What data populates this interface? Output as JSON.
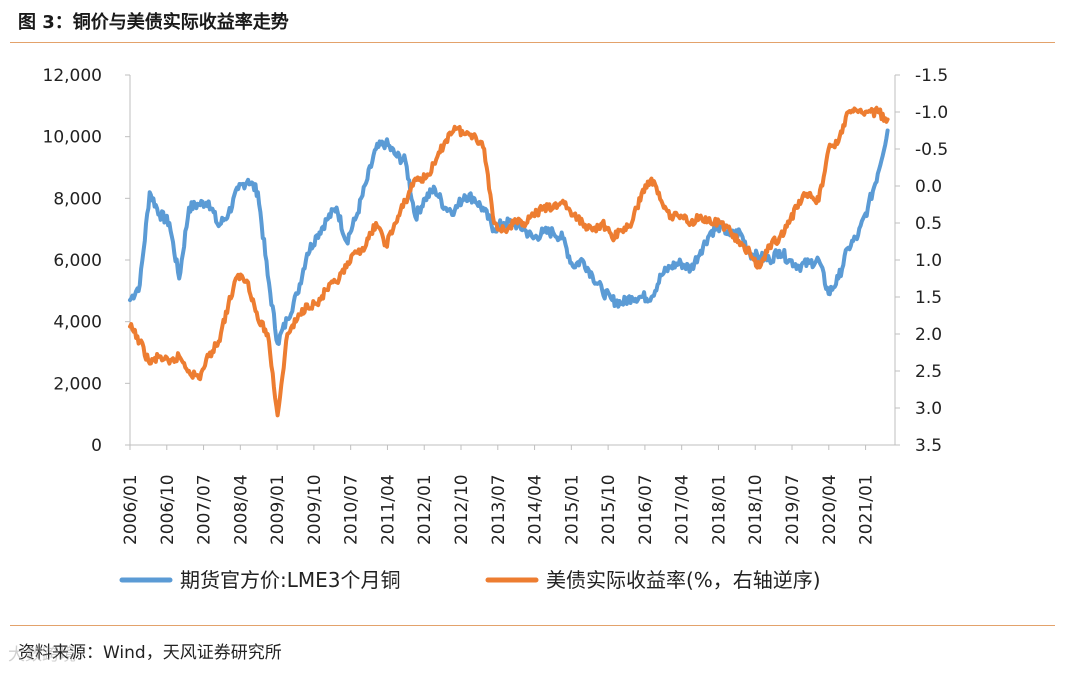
{
  "header": {
    "title": "图 3：铜价与美债实际收益率走势"
  },
  "footer": {
    "source": "资料来源：Wind，天风证券研究所",
    "watermark": "大数跨境"
  },
  "chart_data": {
    "type": "line",
    "title": "图 3：铜价与美债实际收益率走势",
    "xlabel": "",
    "ylabel": "",
    "x_ticks": [
      "2006/01",
      "2006/10",
      "2007/07",
      "2008/04",
      "2009/01",
      "2009/10",
      "2010/07",
      "2011/04",
      "2012/01",
      "2012/10",
      "2013/07",
      "2014/04",
      "2015/01",
      "2015/10",
      "2016/07",
      "2017/04",
      "2018/01",
      "2018/10",
      "2019/07",
      "2020/04",
      "2021/01"
    ],
    "y_left": {
      "ticks": [
        "0",
        "2,000",
        "4,000",
        "6,000",
        "8,000",
        "10,000",
        "12,000"
      ],
      "ylim": [
        0,
        12000
      ]
    },
    "y_right": {
      "ticks": [
        "3.5",
        "3.0",
        "2.5",
        "2.0",
        "1.5",
        "1.0",
        "0.5",
        "0.0",
        "-0.5",
        "-1.0",
        "-1.5"
      ],
      "ylim": [
        3.5,
        -1.5
      ],
      "inverted": true
    },
    "series": [
      {
        "name": "期货官方价:LME3个月铜",
        "axis": "left",
        "color": "#5b9bd5",
        "x": [
          2006.0,
          2006.2,
          2006.4,
          2006.6,
          2006.8,
          2007.0,
          2007.2,
          2007.4,
          2007.6,
          2007.8,
          2008.0,
          2008.2,
          2008.4,
          2008.6,
          2008.8,
          2009.0,
          2009.2,
          2009.4,
          2009.6,
          2009.8,
          2010.0,
          2010.2,
          2010.4,
          2010.6,
          2010.8,
          2011.0,
          2011.2,
          2011.4,
          2011.6,
          2011.8,
          2012.0,
          2012.2,
          2012.4,
          2012.6,
          2012.8,
          2013.0,
          2013.2,
          2013.4,
          2013.6,
          2013.8,
          2014.0,
          2014.2,
          2014.4,
          2014.6,
          2014.8,
          2015.0,
          2015.2,
          2015.4,
          2015.6,
          2015.8,
          2016.0,
          2016.2,
          2016.4,
          2016.6,
          2016.8,
          2017.0,
          2017.2,
          2017.4,
          2017.6,
          2017.8,
          2018.0,
          2018.2,
          2018.4,
          2018.6,
          2018.8,
          2019.0,
          2019.2,
          2019.4,
          2019.6,
          2019.8,
          2020.0,
          2020.2,
          2020.4,
          2020.6,
          2020.8,
          2021.0,
          2021.2,
          2021.4
        ],
        "values": [
          4700,
          5200,
          8200,
          7500,
          7200,
          5400,
          7700,
          7800,
          7900,
          7100,
          7500,
          8300,
          8600,
          8200,
          5500,
          3300,
          4100,
          4900,
          6200,
          6800,
          7300,
          7700,
          6600,
          7400,
          8500,
          9600,
          9800,
          9400,
          9200,
          7400,
          8000,
          8300,
          7700,
          7600,
          8100,
          8000,
          7600,
          7000,
          7200,
          7200,
          7000,
          6700,
          6900,
          6900,
          6700,
          5800,
          6000,
          5500,
          5000,
          4700,
          4600,
          4800,
          4800,
          4800,
          5500,
          5800,
          5900,
          5700,
          6300,
          6900,
          7100,
          6800,
          6900,
          6200,
          6100,
          6000,
          6300,
          6000,
          5800,
          5900,
          6000,
          4900,
          5400,
          6400,
          6800,
          7700,
          8800,
          10200
        ]
      },
      {
        "name": "美债实际收益率(%，右轴逆序)",
        "axis": "right",
        "color": "#ed7d31",
        "x": [
          2006.0,
          2006.2,
          2006.4,
          2006.6,
          2006.8,
          2007.0,
          2007.2,
          2007.4,
          2007.6,
          2007.8,
          2008.0,
          2008.2,
          2008.4,
          2008.6,
          2008.8,
          2009.0,
          2009.2,
          2009.4,
          2009.6,
          2009.8,
          2010.0,
          2010.2,
          2010.4,
          2010.6,
          2010.8,
          2011.0,
          2011.2,
          2011.4,
          2011.6,
          2011.8,
          2012.0,
          2012.2,
          2012.4,
          2012.6,
          2012.8,
          2013.0,
          2013.2,
          2013.4,
          2013.6,
          2013.8,
          2014.0,
          2014.2,
          2014.4,
          2014.6,
          2014.8,
          2015.0,
          2015.2,
          2015.4,
          2015.6,
          2015.8,
          2016.0,
          2016.2,
          2016.4,
          2016.6,
          2016.8,
          2017.0,
          2017.2,
          2017.4,
          2017.6,
          2017.8,
          2018.0,
          2018.2,
          2018.4,
          2018.6,
          2018.8,
          2019.0,
          2019.2,
          2019.4,
          2019.6,
          2019.8,
          2020.0,
          2020.2,
          2020.4,
          2020.6,
          2020.8,
          2021.0,
          2021.2,
          2021.4
        ],
        "values": [
          1.9,
          2.1,
          2.4,
          2.3,
          2.4,
          2.3,
          2.5,
          2.6,
          2.3,
          2.1,
          1.6,
          1.2,
          1.3,
          1.8,
          2.0,
          3.1,
          2.0,
          1.8,
          1.6,
          1.6,
          1.4,
          1.3,
          1.1,
          0.9,
          0.8,
          0.5,
          0.8,
          0.5,
          0.2,
          -0.1,
          -0.1,
          -0.3,
          -0.6,
          -0.8,
          -0.7,
          -0.7,
          -0.5,
          0.5,
          0.6,
          0.5,
          0.5,
          0.4,
          0.3,
          0.3,
          0.2,
          0.4,
          0.5,
          0.6,
          0.5,
          0.7,
          0.6,
          0.5,
          0.1,
          -0.1,
          0.2,
          0.4,
          0.4,
          0.5,
          0.4,
          0.5,
          0.5,
          0.6,
          0.8,
          0.9,
          1.1,
          0.8,
          0.7,
          0.5,
          0.2,
          0.1,
          0.2,
          -0.5,
          -0.6,
          -1.0,
          -1.0,
          -1.0,
          -1.0,
          -0.9
        ]
      }
    ],
    "legend": {
      "placement": "bottom"
    },
    "grid": false
  }
}
